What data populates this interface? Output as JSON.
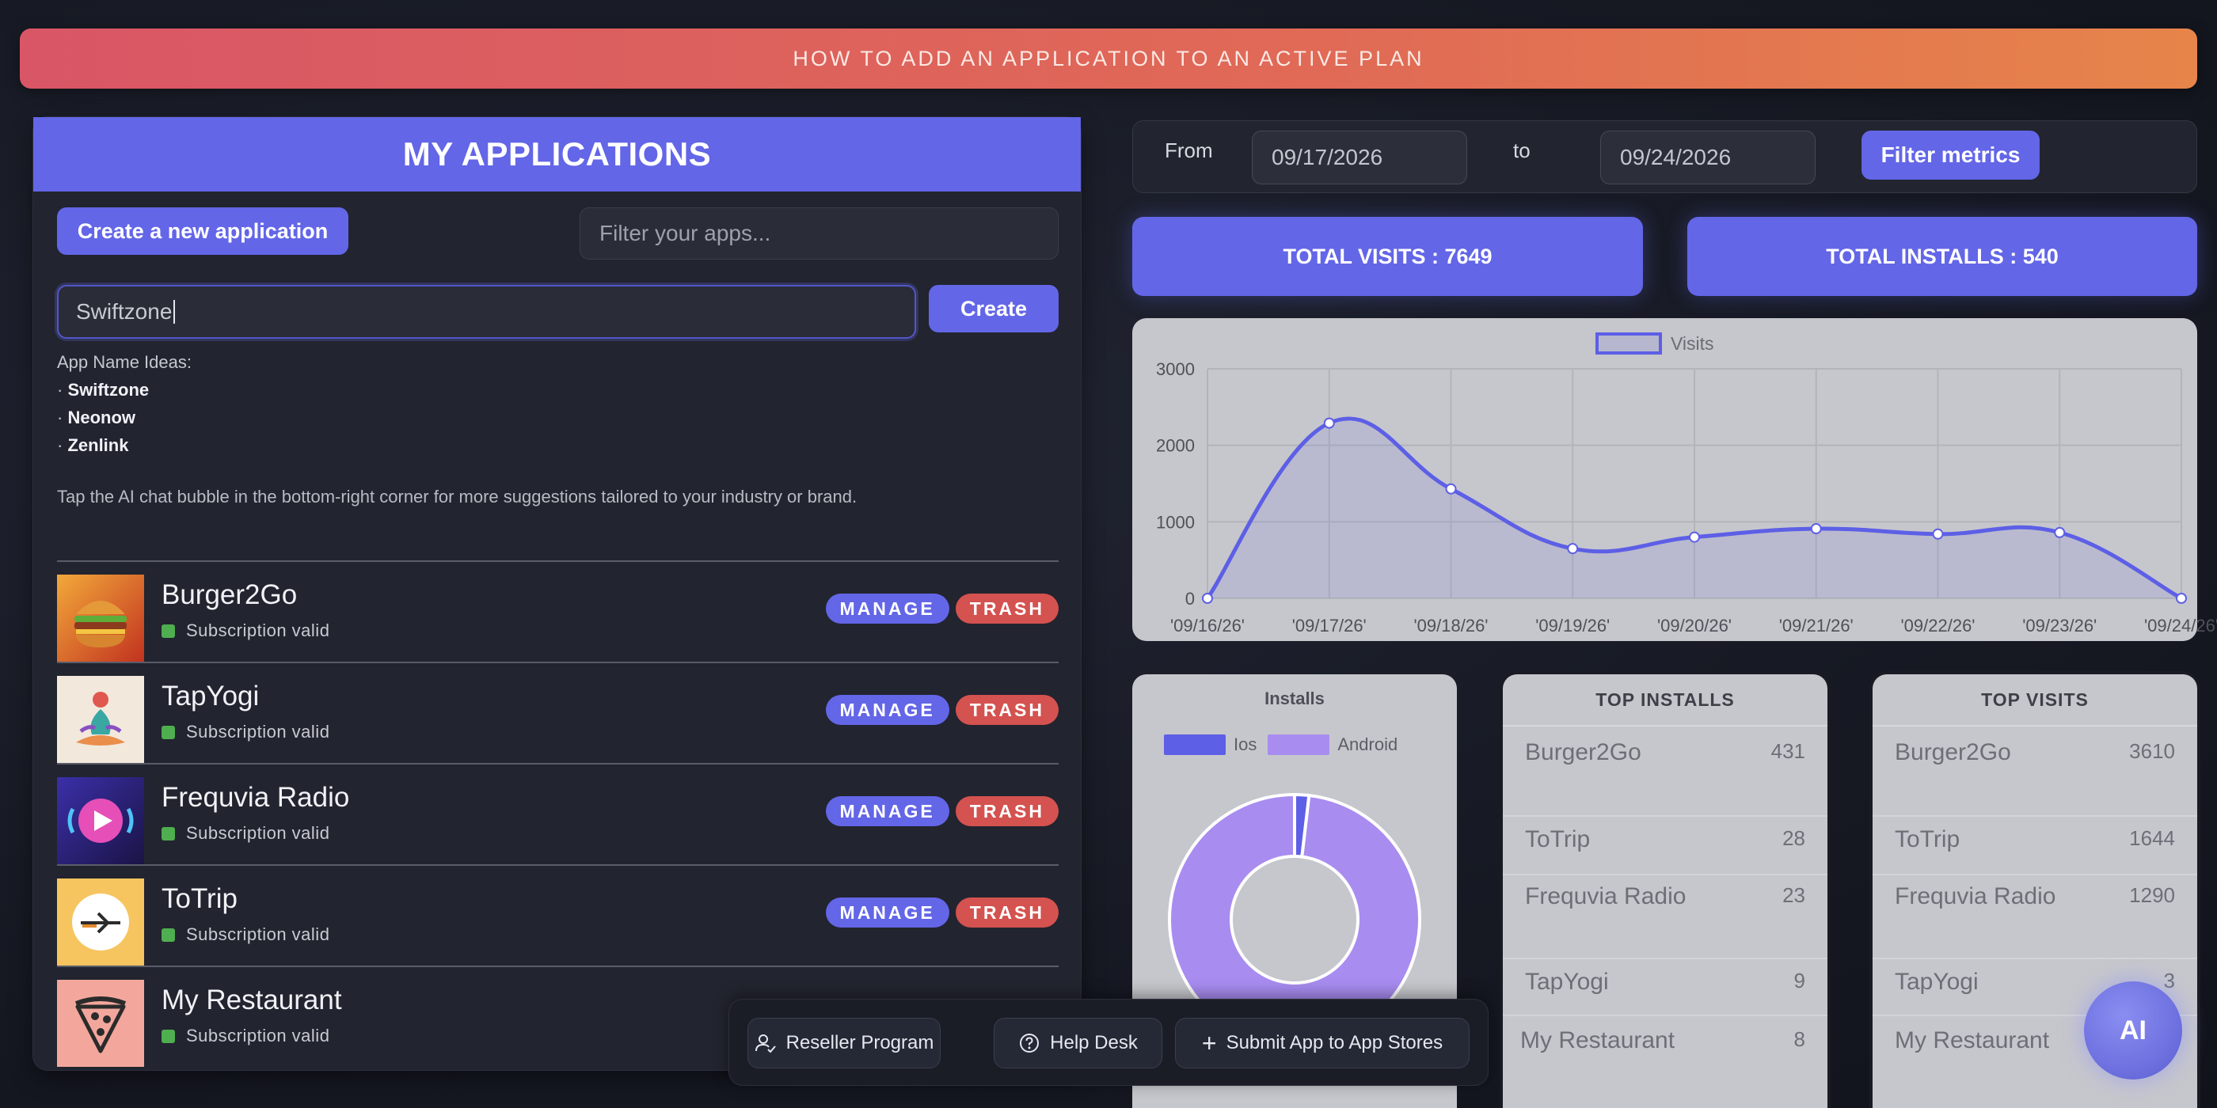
{
  "banner": {
    "text": "HOW TO ADD AN APPLICATION TO AN ACTIVE PLAN"
  },
  "apps_panel": {
    "title": "MY APPLICATIONS",
    "create_new_label": "Create a new application",
    "filter_placeholder": "Filter your apps...",
    "name_input_value": "Swiftzone",
    "create_label": "Create",
    "ideas_heading": "App Name Ideas:",
    "ideas": [
      "Swiftzone",
      "Neonow",
      "Zenlink"
    ],
    "tip": "Tap the AI chat bubble in the bottom-right corner for more suggestions tailored to your industry or brand.",
    "manage_label": "MANAGE",
    "trash_label": "TRASH",
    "apps": [
      {
        "name": "Burger2Go",
        "status": "Subscription valid",
        "icon": "burger-icon"
      },
      {
        "name": "TapYogi",
        "status": "Subscription valid",
        "icon": "yoga-icon"
      },
      {
        "name": "Frequvia Radio",
        "status": "Subscription valid",
        "icon": "radio-play-icon"
      },
      {
        "name": "ToTrip",
        "status": "Subscription valid",
        "icon": "airplane-icon"
      },
      {
        "name": "My Restaurant",
        "status": "Subscription valid",
        "icon": "pizza-icon"
      }
    ]
  },
  "date_filter": {
    "from_label": "From",
    "from_value": "09/17/2026",
    "to_label": "to",
    "to_value": "09/24/2026",
    "button_label": "Filter metrics"
  },
  "totals": {
    "visits_label": "TOTAL VISITS : 7649",
    "installs_label": "TOTAL INSTALLS : 540"
  },
  "chart_data": [
    {
      "type": "line",
      "legend": [
        "Visits"
      ],
      "x": [
        "'09/16/26'",
        "'09/17/26'",
        "'09/18/26'",
        "'09/19/26'",
        "'09/20/26'",
        "'09/21/26'",
        "'09/22/26'",
        "'09/23/26'",
        "'09/24/26'"
      ],
      "series": [
        {
          "name": "Visits",
          "values": [
            0,
            2290,
            1430,
            650,
            800,
            910,
            840,
            860,
            0
          ]
        }
      ],
      "yticks": [
        "0",
        "1000",
        "2000",
        "3000"
      ],
      "ylim": [
        0,
        3000
      ],
      "grid": true,
      "color": "#5d5fe6"
    },
    {
      "type": "pie",
      "title": "Installs",
      "categories": [
        "Ios",
        "Android"
      ],
      "values": [
        10,
        530
      ],
      "colors": [
        "#5d5fe6",
        "#a88cf0"
      ]
    }
  ],
  "top_installs": {
    "title": "TOP INSTALLS",
    "rows": [
      {
        "name": "Burger2Go",
        "value": "431"
      },
      {
        "name": "ToTrip",
        "value": "28"
      },
      {
        "name": "Frequvia Radio",
        "value": "23"
      },
      {
        "name": "TapYogi",
        "value": "9"
      },
      {
        "name": "My Restaurant",
        "value": "8"
      }
    ]
  },
  "top_visits": {
    "title": "TOP VISITS",
    "rows": [
      {
        "name": "Burger2Go",
        "value": "3610"
      },
      {
        "name": "ToTrip",
        "value": "1644"
      },
      {
        "name": "Frequvia Radio",
        "value": "1290"
      },
      {
        "name": "TapYogi",
        "value": "3"
      },
      {
        "name": "My Restaurant",
        "value": ""
      }
    ]
  },
  "bottom_bar": {
    "reseller_label": "Reseller Program",
    "help_label": "Help Desk",
    "submit_label": "Submit App to App Stores"
  },
  "ai_bubble": {
    "label": "AI"
  },
  "colors": {
    "accent": "#6366e7",
    "trash": "#d4524f",
    "status_ok": "#4fae4f",
    "banner_start": "#d95666",
    "banner_end": "#e6844a"
  }
}
